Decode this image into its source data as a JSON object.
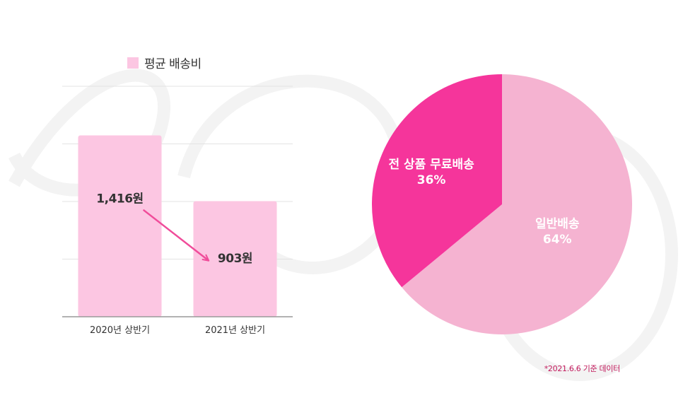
{
  "chart_data": [
    {
      "type": "bar",
      "legend": "평균 배송비",
      "legend_position": "top",
      "categories": [
        "2020년 상반기",
        "2021년 상반기"
      ],
      "values": [
        1416,
        903
      ],
      "data_labels": [
        "1,416원",
        "903원"
      ],
      "ylim": [
        0,
        1800
      ],
      "grid": true,
      "annotation": "arrow from 2020 value to 2021 value"
    },
    {
      "type": "pie",
      "slices": [
        {
          "label": "일반배송",
          "value": 64,
          "display": "64%"
        },
        {
          "label": "전 상품 무료배송",
          "value": 36,
          "display": "36%"
        }
      ]
    }
  ],
  "footnote": "*2021.6.6 기준 데이터",
  "colors": {
    "bar": "#fcc6e2",
    "pie_general": "#f5b3d1",
    "pie_free": "#f5359b",
    "arrow": "#f04c9a",
    "grid": "#e3e3e3",
    "axis": "#999999",
    "footnote": "#c2185b",
    "background_swirl": "#f4f4f4"
  }
}
